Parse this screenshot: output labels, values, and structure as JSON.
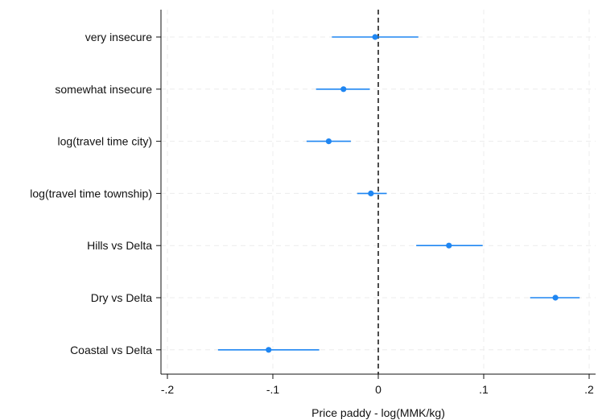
{
  "chart_data": {
    "type": "coefficient-plot",
    "title": "",
    "xlabel": "Price paddy - log(MMK/kg)",
    "ylabel": "",
    "xlim": [
      -0.2,
      0.2
    ],
    "xticks": [
      {
        "value": -0.2,
        "label": "-.2"
      },
      {
        "value": -0.1,
        "label": "-.1"
      },
      {
        "value": 0,
        "label": "0"
      },
      {
        "value": 0.1,
        "label": ".1"
      },
      {
        "value": 0.2,
        "label": ".2"
      }
    ],
    "reference_line": 0,
    "grid": true,
    "marker_color": "#1f86f2",
    "points": [
      {
        "label": "very insecure",
        "estimate": -0.003,
        "ci": [
          -0.044,
          0.038
        ]
      },
      {
        "label": "somewhat insecure",
        "estimate": -0.033,
        "ci": [
          -0.059,
          -0.008
        ]
      },
      {
        "label": "log(travel time city)",
        "estimate": -0.047,
        "ci": [
          -0.068,
          -0.026
        ]
      },
      {
        "label": "log(travel time township)",
        "estimate": -0.007,
        "ci": [
          -0.02,
          0.008
        ]
      },
      {
        "label": "Hills vs Delta",
        "estimate": 0.067,
        "ci": [
          0.036,
          0.099
        ]
      },
      {
        "label": "Dry vs Delta",
        "estimate": 0.168,
        "ci": [
          0.144,
          0.191
        ]
      },
      {
        "label": "Coastal vs Delta",
        "estimate": -0.104,
        "ci": [
          -0.152,
          -0.056
        ]
      }
    ]
  }
}
